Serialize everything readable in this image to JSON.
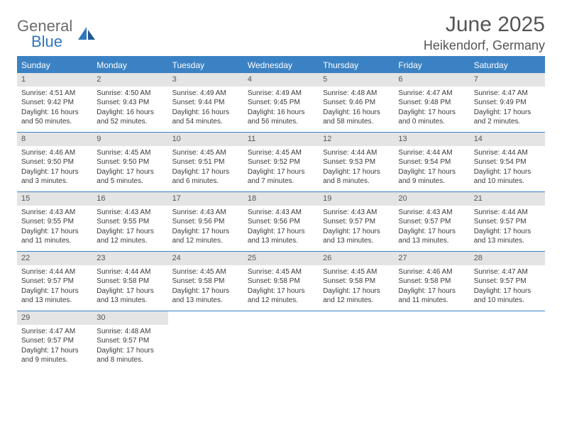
{
  "logo": {
    "text1": "General",
    "text2": "Blue"
  },
  "title": {
    "month": "June 2025",
    "location": "Heikendorf, Germany"
  },
  "colors": {
    "header_bg": "#3b82c4",
    "header_text": "#ffffff",
    "daybar_bg": "#e4e4e4",
    "border": "#3b82c4",
    "text": "#3a3a3a",
    "title_text": "#555555",
    "logo_gray": "#6b6b6b",
    "logo_blue": "#2f76bb"
  },
  "day_headers": [
    "Sunday",
    "Monday",
    "Tuesday",
    "Wednesday",
    "Thursday",
    "Friday",
    "Saturday"
  ],
  "weeks": [
    [
      {
        "n": "1",
        "sr": "4:51 AM",
        "ss": "9:42 PM",
        "dl": "16 hours and 50 minutes."
      },
      {
        "n": "2",
        "sr": "4:50 AM",
        "ss": "9:43 PM",
        "dl": "16 hours and 52 minutes."
      },
      {
        "n": "3",
        "sr": "4:49 AM",
        "ss": "9:44 PM",
        "dl": "16 hours and 54 minutes."
      },
      {
        "n": "4",
        "sr": "4:49 AM",
        "ss": "9:45 PM",
        "dl": "16 hours and 56 minutes."
      },
      {
        "n": "5",
        "sr": "4:48 AM",
        "ss": "9:46 PM",
        "dl": "16 hours and 58 minutes."
      },
      {
        "n": "6",
        "sr": "4:47 AM",
        "ss": "9:48 PM",
        "dl": "17 hours and 0 minutes."
      },
      {
        "n": "7",
        "sr": "4:47 AM",
        "ss": "9:49 PM",
        "dl": "17 hours and 2 minutes."
      }
    ],
    [
      {
        "n": "8",
        "sr": "4:46 AM",
        "ss": "9:50 PM",
        "dl": "17 hours and 3 minutes."
      },
      {
        "n": "9",
        "sr": "4:45 AM",
        "ss": "9:50 PM",
        "dl": "17 hours and 5 minutes."
      },
      {
        "n": "10",
        "sr": "4:45 AM",
        "ss": "9:51 PM",
        "dl": "17 hours and 6 minutes."
      },
      {
        "n": "11",
        "sr": "4:45 AM",
        "ss": "9:52 PM",
        "dl": "17 hours and 7 minutes."
      },
      {
        "n": "12",
        "sr": "4:44 AM",
        "ss": "9:53 PM",
        "dl": "17 hours and 8 minutes."
      },
      {
        "n": "13",
        "sr": "4:44 AM",
        "ss": "9:54 PM",
        "dl": "17 hours and 9 minutes."
      },
      {
        "n": "14",
        "sr": "4:44 AM",
        "ss": "9:54 PM",
        "dl": "17 hours and 10 minutes."
      }
    ],
    [
      {
        "n": "15",
        "sr": "4:43 AM",
        "ss": "9:55 PM",
        "dl": "17 hours and 11 minutes."
      },
      {
        "n": "16",
        "sr": "4:43 AM",
        "ss": "9:55 PM",
        "dl": "17 hours and 12 minutes."
      },
      {
        "n": "17",
        "sr": "4:43 AM",
        "ss": "9:56 PM",
        "dl": "17 hours and 12 minutes."
      },
      {
        "n": "18",
        "sr": "4:43 AM",
        "ss": "9:56 PM",
        "dl": "17 hours and 13 minutes."
      },
      {
        "n": "19",
        "sr": "4:43 AM",
        "ss": "9:57 PM",
        "dl": "17 hours and 13 minutes."
      },
      {
        "n": "20",
        "sr": "4:43 AM",
        "ss": "9:57 PM",
        "dl": "17 hours and 13 minutes."
      },
      {
        "n": "21",
        "sr": "4:44 AM",
        "ss": "9:57 PM",
        "dl": "17 hours and 13 minutes."
      }
    ],
    [
      {
        "n": "22",
        "sr": "4:44 AM",
        "ss": "9:57 PM",
        "dl": "17 hours and 13 minutes."
      },
      {
        "n": "23",
        "sr": "4:44 AM",
        "ss": "9:58 PM",
        "dl": "17 hours and 13 minutes."
      },
      {
        "n": "24",
        "sr": "4:45 AM",
        "ss": "9:58 PM",
        "dl": "17 hours and 13 minutes."
      },
      {
        "n": "25",
        "sr": "4:45 AM",
        "ss": "9:58 PM",
        "dl": "17 hours and 12 minutes."
      },
      {
        "n": "26",
        "sr": "4:45 AM",
        "ss": "9:58 PM",
        "dl": "17 hours and 12 minutes."
      },
      {
        "n": "27",
        "sr": "4:46 AM",
        "ss": "9:58 PM",
        "dl": "17 hours and 11 minutes."
      },
      {
        "n": "28",
        "sr": "4:47 AM",
        "ss": "9:57 PM",
        "dl": "17 hours and 10 minutes."
      }
    ],
    [
      {
        "n": "29",
        "sr": "4:47 AM",
        "ss": "9:57 PM",
        "dl": "17 hours and 9 minutes."
      },
      {
        "n": "30",
        "sr": "4:48 AM",
        "ss": "9:57 PM",
        "dl": "17 hours and 8 minutes."
      },
      null,
      null,
      null,
      null,
      null
    ]
  ],
  "labels": {
    "sunrise": "Sunrise:",
    "sunset": "Sunset:",
    "daylight": "Daylight:"
  }
}
